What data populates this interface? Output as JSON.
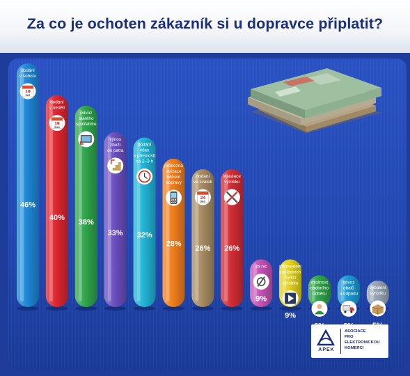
{
  "title": "Za co je ochoten zákazník si u dopravce připlatit?",
  "logo": {
    "abbr": "APEK",
    "name_lines": [
      "ASOCIACE",
      "PRO",
      "ELEKTRONICKOU",
      "KOMERCI"
    ]
  },
  "chart_data": {
    "type": "bar",
    "ylim": [
      0,
      46
    ],
    "grid": false,
    "value_suffix": "%",
    "categories": [
      {
        "label_lines": [
          "dodání",
          "v sobotu"
        ],
        "value": 46,
        "color": "#1f88d6",
        "icon": "calendar-sat-icon",
        "icon_text": [
          "19",
          "SAT"
        ]
      },
      {
        "label_lines": [
          "dodání",
          "v neděli"
        ],
        "value": 40,
        "color": "#dd2730",
        "icon": "calendar-sun-icon",
        "icon_text": [
          "19",
          "SUN"
        ]
      },
      {
        "label_lines": [
          "odvoz",
          "starého",
          "spotřebiče"
        ],
        "value": 38,
        "color": "#2fa54a",
        "icon": "tv-icon"
      },
      {
        "label_lines": [
          "výnos",
          "zboží",
          "do patra"
        ],
        "value": 33,
        "color": "#6b4fc0",
        "icon": "stairs-icon"
      },
      {
        "label_lines": [
          "dodání",
          "včas",
          "s přesností",
          "na 2–3 h"
        ],
        "value": 32,
        "color": "#22b4d6",
        "icon": "clock-icon"
      },
      {
        "label_lines": [
          "průběžná",
          "avízace",
          "během",
          "dopravy"
        ],
        "value": 28,
        "color": "#f07f1d",
        "icon": "phone-icon"
      },
      {
        "label_lines": [
          "dodání",
          "ve svátek"
        ],
        "value": 26,
        "color": "#a88c63",
        "icon": "calendar-dec-icon",
        "icon_text": [
          "24",
          "DEC"
        ]
      },
      {
        "label_lines": [
          "instalace",
          "výrobku"
        ],
        "value": 26,
        "color": "#d32d35",
        "icon": "tools-icon"
      },
      {
        "label_lines": [
          "za nic"
        ],
        "value": 9,
        "color": "#c452b6",
        "icon": "empty-set-icon"
      },
      {
        "label_lines": [
          "předvedení",
          "základních",
          "funkcí",
          "výrobku"
        ],
        "value": 9,
        "color": "#e3d21f",
        "icon": "play-icon"
      },
      {
        "label_lines": [
          "možnost",
          "osobního",
          "odběru"
        ],
        "value": 6,
        "color": "#2ea449",
        "icon": "person-icon"
      },
      {
        "label_lines": [
          "odvoz",
          "obalů",
          "a odpadu"
        ],
        "value": 6,
        "color": "#1c9ad6",
        "icon": "truck-icon"
      },
      {
        "label_lines": [
          "vybalení",
          "výrobku"
        ],
        "value": 5,
        "color": "#97a4b6",
        "icon": "box-icon"
      }
    ]
  }
}
